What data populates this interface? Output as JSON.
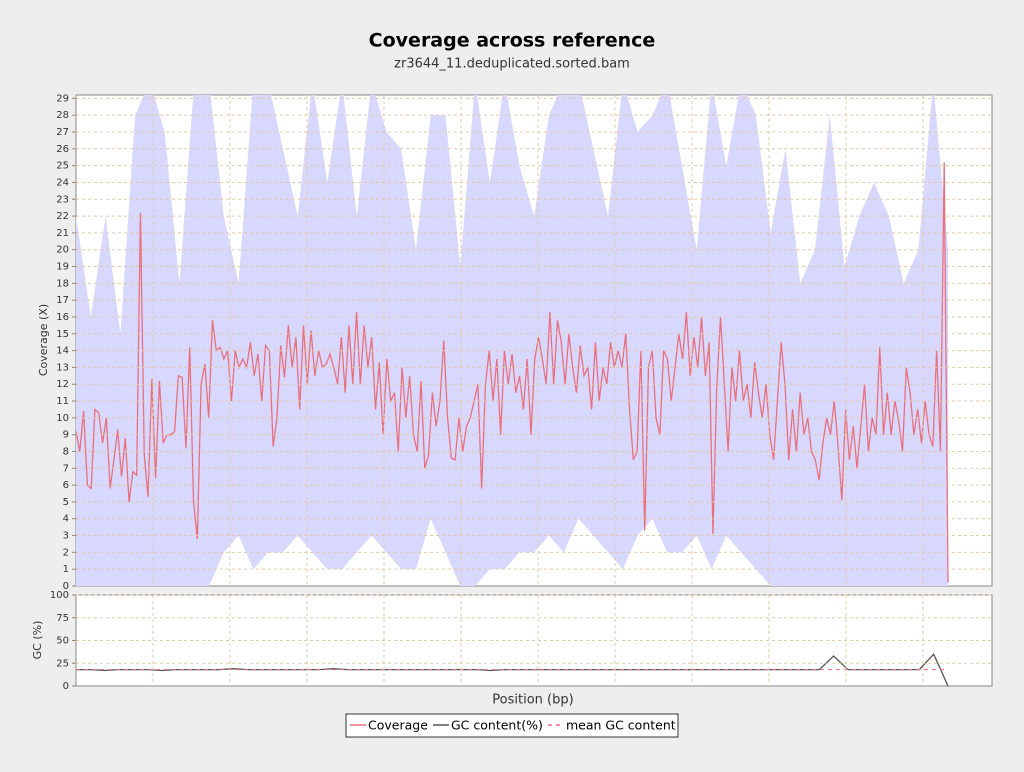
{
  "chart_data": [
    {
      "type": "line",
      "title": "Coverage across reference",
      "subtitle": "zr3644_11.deduplicated.sorted.bam",
      "ylabel": "Coverage (X)",
      "ylim": [
        0,
        29.2
      ],
      "yticks": [
        0,
        1,
        2,
        3,
        4,
        5,
        6,
        7,
        8,
        9,
        10,
        11,
        12,
        13,
        14,
        15,
        16,
        17,
        18,
        19,
        20,
        21,
        22,
        23,
        24,
        25,
        26,
        27,
        28,
        29
      ],
      "grid": true,
      "band": {
        "color": "#d8d8ff",
        "upper": [
          22,
          16,
          22,
          15,
          28,
          30,
          27,
          18,
          30,
          30,
          22,
          18,
          30,
          30,
          26,
          22,
          30,
          24,
          30,
          22,
          30,
          27,
          26,
          20,
          28,
          28,
          19,
          30,
          24,
          30,
          25,
          22,
          28,
          30,
          30,
          26,
          22,
          30,
          27,
          28,
          30,
          25,
          20,
          30,
          25,
          30,
          28,
          21,
          26,
          18,
          20,
          28,
          19,
          22,
          24,
          22,
          18,
          20,
          30,
          20
        ],
        "lower": [
          0,
          0,
          0,
          0,
          0,
          0,
          0,
          0,
          0,
          0,
          2,
          3,
          1,
          2,
          2,
          3,
          2,
          1,
          1,
          2,
          3,
          2,
          1,
          1,
          4,
          2,
          0,
          0,
          1,
          1,
          2,
          2,
          3,
          2,
          4,
          3,
          2,
          1,
          3,
          4,
          2,
          2,
          3,
          1,
          3,
          2,
          1,
          0,
          0,
          0,
          0,
          0,
          0,
          0,
          0,
          0,
          0,
          0,
          0,
          0
        ]
      },
      "series": [
        {
          "name": "Coverage",
          "color": "#e8707c",
          "values": [
            9.2,
            8,
            10.4,
            6,
            5.8,
            10.5,
            10.3,
            8.5,
            10,
            5.8,
            7.5,
            9.3,
            6.5,
            8.8,
            5,
            6.8,
            6.6,
            22.2,
            7.8,
            5.3,
            12.3,
            6.4,
            12.2,
            8.5,
            9,
            9,
            9.2,
            12.5,
            12.4,
            8.2,
            14.2,
            5,
            2.8,
            12,
            13.2,
            10,
            15.8,
            14,
            14.2,
            13.5,
            14,
            11,
            14,
            13,
            13.5,
            13,
            14.5,
            12.5,
            13.8,
            11,
            14.3,
            14,
            8.3,
            10,
            14.3,
            12.4,
            15.5,
            13,
            14.8,
            10.5,
            15.5,
            12,
            15.2,
            12.5,
            14,
            13,
            13.2,
            13.8,
            13,
            12,
            14.8,
            11.5,
            15.5,
            12,
            16.3,
            12,
            15.5,
            13,
            14.8,
            10.5,
            13.3,
            9,
            13.5,
            11,
            11.5,
            8,
            13,
            10,
            12.5,
            9,
            8,
            12.2,
            7,
            7.8,
            11.5,
            9.5,
            11,
            14.6,
            10,
            7.6,
            7.5,
            10,
            8,
            9.5,
            10,
            11,
            12,
            5.8,
            12,
            14,
            11,
            13.5,
            9,
            14,
            12,
            13.8,
            11.5,
            12.5,
            10.5,
            13.5,
            9,
            13.5,
            14.8,
            13.5,
            12,
            16.3,
            12,
            15.8,
            14.5,
            12,
            15,
            13,
            11.5,
            14.3,
            12.5,
            13,
            10.5,
            14.5,
            11,
            13,
            12,
            14.5,
            13,
            14,
            13,
            15,
            10.5,
            7.5,
            8,
            14,
            3.3,
            13,
            14,
            10,
            9,
            14,
            13.5,
            11,
            13,
            15,
            13.5,
            16.3,
            12.5,
            14.8,
            13,
            16,
            12.5,
            14.5,
            3.1,
            11.8,
            16,
            12,
            8,
            13,
            11,
            14,
            11,
            12,
            10,
            13.3,
            11.5,
            10,
            12,
            9,
            7.5,
            11,
            14.5,
            12,
            7.5,
            10.5,
            8,
            11.5,
            9,
            10,
            8,
            7.5,
            6.3,
            8.5,
            10,
            9,
            11,
            8.3,
            5.1,
            10.5,
            7.5,
            9.5,
            7,
            9.5,
            12,
            8,
            10,
            9,
            14.2,
            9,
            11.5,
            9,
            11,
            9.8,
            8,
            13,
            11.5,
            9,
            10.5,
            8.5,
            11,
            9,
            8.3,
            14,
            8,
            25.2,
            0.2
          ]
        }
      ]
    },
    {
      "type": "line",
      "ylabel": "GC (%)",
      "xlabel": "Position (bp)",
      "ylim": [
        0,
        100
      ],
      "yticks": [
        0,
        25,
        50,
        75,
        100
      ],
      "grid": true,
      "series": [
        {
          "name": "GC content(%)",
          "color": "#555555",
          "values": [
            18,
            18,
            17,
            18,
            18,
            18,
            17,
            18,
            18,
            18,
            18,
            19,
            18,
            18,
            18,
            18,
            18,
            18,
            19,
            18,
            18,
            18,
            18,
            18,
            18,
            18,
            18,
            18,
            18,
            17,
            18,
            18,
            18,
            18,
            18,
            18,
            18,
            18,
            18,
            18,
            18,
            18,
            18,
            18,
            18,
            18,
            18,
            18,
            18,
            18,
            18,
            18,
            18,
            33,
            18,
            18,
            18,
            18,
            18,
            18,
            35,
            0
          ]
        },
        {
          "name": "mean GC content",
          "color": "#e8707c",
          "value": 18
        }
      ]
    }
  ]
}
